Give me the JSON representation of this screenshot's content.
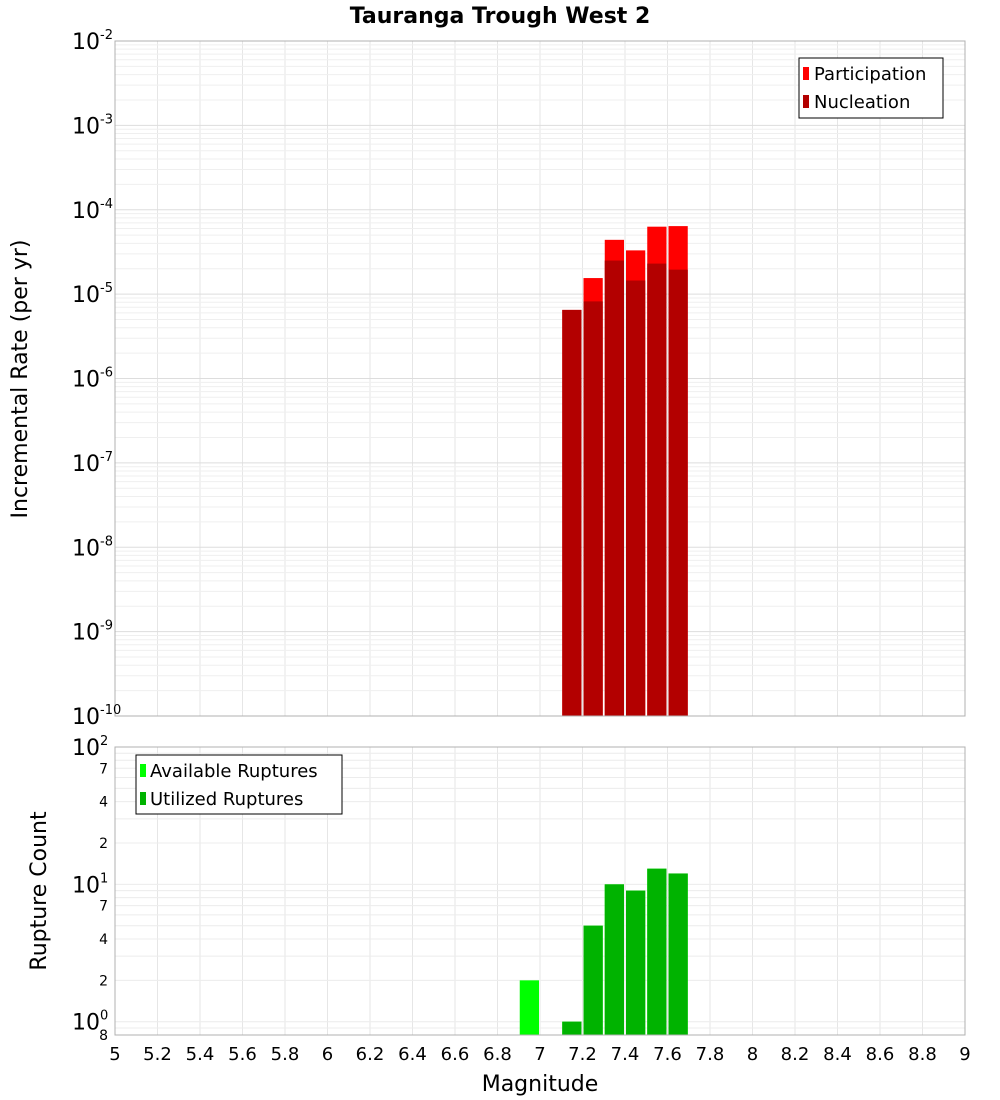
{
  "chart_data": [
    {
      "type": "bar",
      "title": "Tauranga Trough West 2",
      "ylabel": "Incremental Rate (per yr)",
      "xlabel": "",
      "y_scale": "log",
      "ylim": [
        1e-10,
        0.01
      ],
      "xlim": [
        5,
        9
      ],
      "bar_width": 0.1,
      "grid": true,
      "legend_position": "top-right",
      "y_tick_labels": [
        {
          "base": "10",
          "exp": "-2",
          "value": 0.01
        },
        {
          "base": "10",
          "exp": "-3",
          "value": 0.001
        },
        {
          "base": "10",
          "exp": "-4",
          "value": 0.0001
        },
        {
          "base": "10",
          "exp": "-5",
          "value": 1e-05
        },
        {
          "base": "10",
          "exp": "-6",
          "value": 1e-06
        },
        {
          "base": "10",
          "exp": "-7",
          "value": 1e-07
        },
        {
          "base": "10",
          "exp": "-8",
          "value": 1e-08
        },
        {
          "base": "10",
          "exp": "-9",
          "value": 1e-09
        },
        {
          "base": "10",
          "exp": "-10",
          "value": 1e-10
        }
      ],
      "series": [
        {
          "name": "Participation",
          "color": "#ff0000",
          "x": [
            7.15,
            7.25,
            7.35,
            7.45,
            7.55,
            7.65
          ],
          "values": [
            6.5e-06,
            1.55e-05,
            4.4e-05,
            3.3e-05,
            6.3e-05,
            6.4e-05
          ]
        },
        {
          "name": "Nucleation",
          "color": "#b30000",
          "x": [
            7.15,
            7.25,
            7.35,
            7.45,
            7.55,
            7.65
          ],
          "values": [
            6.5e-06,
            8.2e-06,
            2.5e-05,
            1.45e-05,
            2.3e-05,
            1.95e-05
          ]
        }
      ]
    },
    {
      "type": "bar",
      "title": "",
      "ylabel": "Rupture Count",
      "xlabel": "Magnitude",
      "y_scale": "log",
      "ylim": [
        0.8,
        100
      ],
      "xlim": [
        5,
        9
      ],
      "bar_width": 0.1,
      "grid": true,
      "legend_position": "top-left",
      "x_tick_labels": [
        "5",
        "5.2",
        "5.4",
        "5.6",
        "5.8",
        "6",
        "6.2",
        "6.4",
        "6.6",
        "6.8",
        "7",
        "7.2",
        "7.4",
        "7.6",
        "7.8",
        "8",
        "8.2",
        "8.4",
        "8.6",
        "8.8",
        "9"
      ],
      "y_major_ticks": [
        {
          "base": "10",
          "exp": "2",
          "value": 100
        },
        {
          "base": "10",
          "exp": "1",
          "value": 10
        },
        {
          "base": "10",
          "exp": "0",
          "value": 1
        }
      ],
      "y_minor_ticks": [
        {
          "label": "7",
          "value": 70
        },
        {
          "label": "4",
          "value": 40
        },
        {
          "label": "2",
          "value": 20
        },
        {
          "label": "7",
          "value": 7
        },
        {
          "label": "4",
          "value": 4
        },
        {
          "label": "2",
          "value": 2
        },
        {
          "label": "8",
          "value": 0.8
        }
      ],
      "series": [
        {
          "name": "Available Ruptures",
          "color": "#00ff00",
          "x": [
            6.95,
            7.15,
            7.25,
            7.35,
            7.45,
            7.55,
            7.65
          ],
          "values": [
            2,
            1,
            5,
            10,
            9,
            13,
            12
          ]
        },
        {
          "name": "Utilized Ruptures",
          "color": "#00b300",
          "x": [
            7.15,
            7.25,
            7.35,
            7.45,
            7.55,
            7.65
          ],
          "values": [
            1,
            5,
            10,
            9,
            13,
            12
          ]
        }
      ]
    }
  ]
}
